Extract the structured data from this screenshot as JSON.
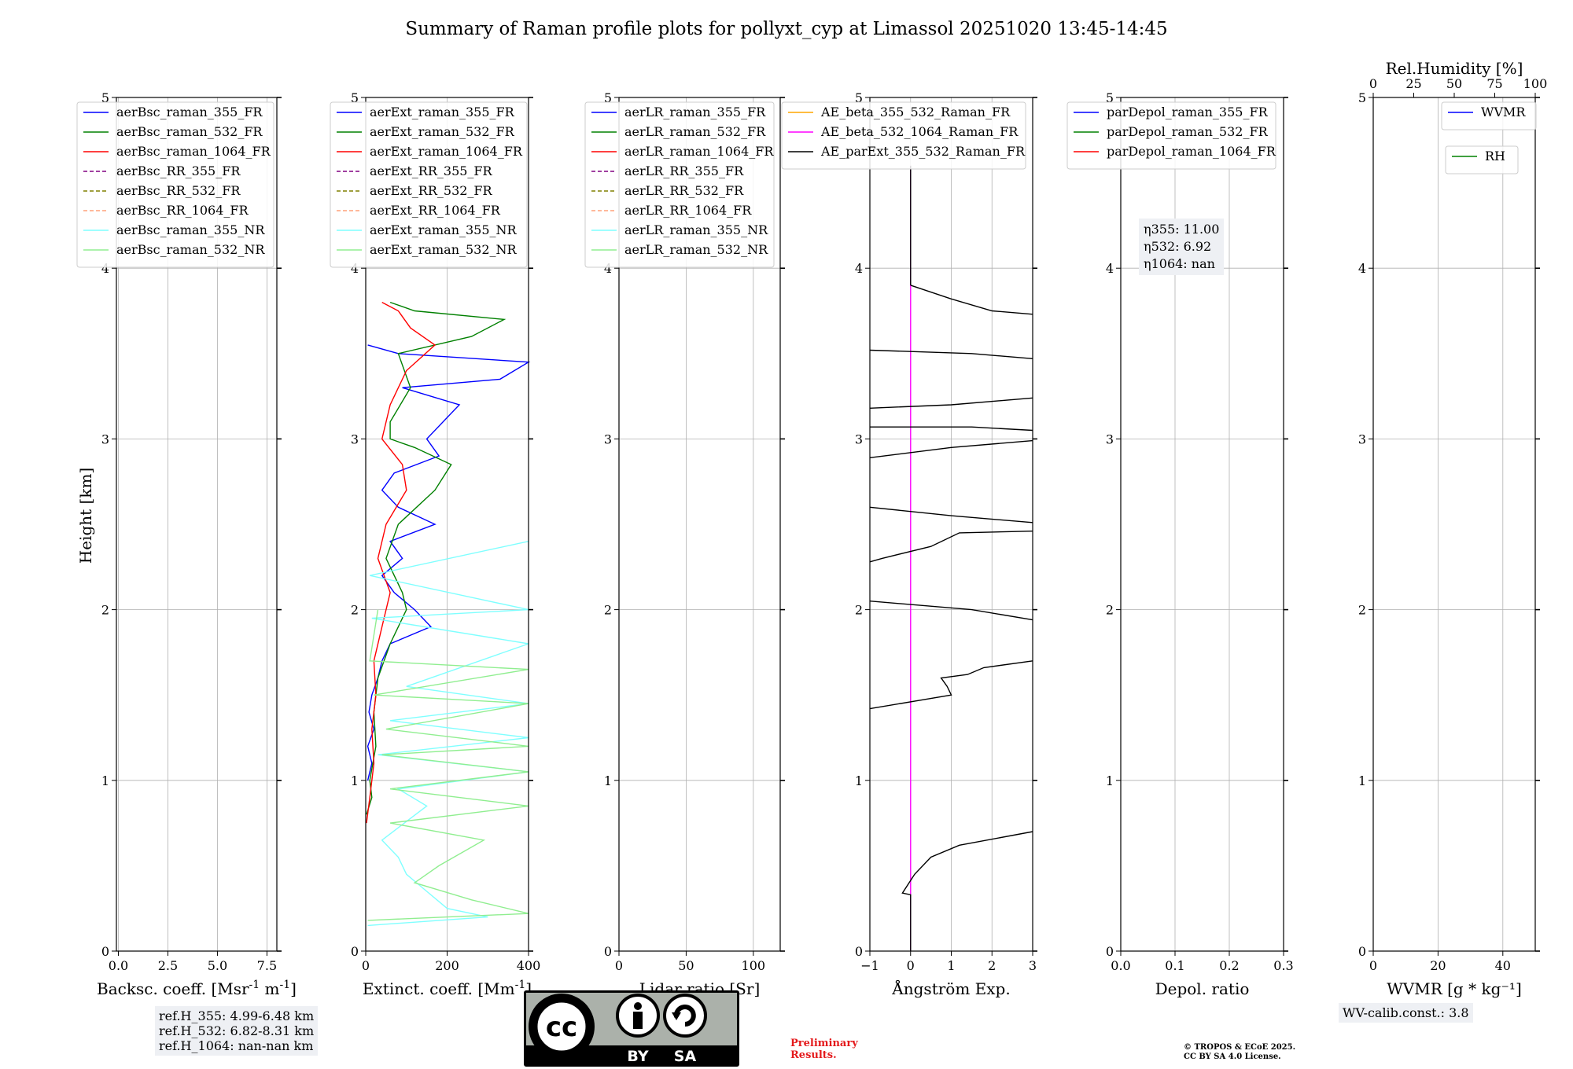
{
  "figure": {
    "title": "Summary of Raman profile plots for pollyxt_cyp at Limassol 20251020 13:45-14:45",
    "y_label": "Height [km]",
    "ref_box": [
      "ref.H_355: 4.99-6.48 km",
      "ref.H_532: 6.82-8.31 km",
      "ref.H_1064: nan-nan km"
    ],
    "wv_calib": "WV-calib.const.: 3.8",
    "preliminary": [
      "Preliminary",
      "Results."
    ],
    "copyright": [
      "© TROPOS & ECoE 2025.",
      "CC BY SA 4.0 License."
    ],
    "cc_badge": {
      "cc": "cc",
      "by": "BY",
      "sa": "SA"
    }
  },
  "colors": {
    "c355": "#0000ff",
    "c532": "#008000",
    "c1064": "#ff0000",
    "rr355": "#800080",
    "rr532": "#808000",
    "rr1064": "#ffa07a",
    "nr355": "#7fffff",
    "nr532": "#90ee90",
    "ae1": "#ffa500",
    "ae2": "#ff00ff",
    "ae3": "#000000"
  },
  "chart_data": [
    {
      "type": "line",
      "id": "bsc",
      "xlabel": "Backsc. coeff. [Msr$^{-1}$ m$^{-1}$]",
      "ylabel": "Height [km]",
      "xlim": [
        -0.1,
        8.0
      ],
      "ylim": [
        0,
        5
      ],
      "xticks": [
        0.0,
        2.5,
        5.0,
        7.5
      ],
      "xtick_labels": [
        "0.0",
        "2.5",
        "5.0",
        "7.5"
      ],
      "yticks": [
        0,
        1,
        2,
        3,
        4,
        5
      ],
      "ytick_labels": [
        "0",
        "1",
        "2",
        "3",
        "4",
        "5"
      ],
      "legend": [
        {
          "label": "aerBsc_raman_355_FR",
          "color": "#0000ff",
          "dash": false
        },
        {
          "label": "aerBsc_raman_532_FR",
          "color": "#008000",
          "dash": false
        },
        {
          "label": "aerBsc_raman_1064_FR",
          "color": "#ff0000",
          "dash": false
        },
        {
          "label": "aerBsc_RR_355_FR",
          "color": "#800080",
          "dash": true
        },
        {
          "label": "aerBsc_RR_532_FR",
          "color": "#808000",
          "dash": true
        },
        {
          "label": "aerBsc_RR_1064_FR",
          "color": "#ffa07a",
          "dash": true
        },
        {
          "label": "aerBsc_raman_355_NR",
          "color": "#7fffff",
          "dash": false
        },
        {
          "label": "aerBsc_raman_532_NR",
          "color": "#90ee90",
          "dash": false
        }
      ],
      "series": []
    },
    {
      "type": "line",
      "id": "ext",
      "xlabel": "Extinct. coeff. [Mm$^{-1}$]",
      "xlim": [
        0,
        400
      ],
      "ylim": [
        0,
        5
      ],
      "xticks": [
        0,
        200,
        400
      ],
      "xtick_labels": [
        "0",
        "200",
        "400"
      ],
      "yticks": [
        0,
        1,
        2,
        3,
        4,
        5
      ],
      "ytick_labels": [
        "0",
        "1",
        "2",
        "3",
        "4",
        "5"
      ],
      "legend": [
        {
          "label": "aerExt_raman_355_FR",
          "color": "#0000ff",
          "dash": false
        },
        {
          "label": "aerExt_raman_532_FR",
          "color": "#008000",
          "dash": false
        },
        {
          "label": "aerExt_raman_1064_FR",
          "color": "#ff0000",
          "dash": false
        },
        {
          "label": "aerExt_RR_355_FR",
          "color": "#800080",
          "dash": true
        },
        {
          "label": "aerExt_RR_532_FR",
          "color": "#808000",
          "dash": true
        },
        {
          "label": "aerExt_RR_1064_FR",
          "color": "#ffa07a",
          "dash": true
        },
        {
          "label": "aerExt_raman_355_NR",
          "color": "#7fffff",
          "dash": false
        },
        {
          "label": "aerExt_raman_532_NR",
          "color": "#90ee90",
          "dash": false
        }
      ],
      "series": [
        {
          "name": "aerExt_raman_355_FR",
          "color": "#0000ff",
          "points": [
            [
              5,
              1.0
            ],
            [
              15,
              1.1
            ],
            [
              5,
              1.2
            ],
            [
              20,
              1.3
            ],
            [
              8,
              1.4
            ],
            [
              15,
              1.5
            ],
            [
              30,
              1.6
            ],
            [
              40,
              1.7
            ],
            [
              60,
              1.8
            ],
            [
              160,
              1.9
            ],
            [
              120,
              2.0
            ],
            [
              70,
              2.1
            ],
            [
              40,
              2.2
            ],
            [
              90,
              2.3
            ],
            [
              60,
              2.4
            ],
            [
              170,
              2.5
            ],
            [
              80,
              2.6
            ],
            [
              40,
              2.7
            ],
            [
              70,
              2.8
            ],
            [
              180,
              2.9
            ],
            [
              150,
              3.0
            ],
            [
              230,
              3.2
            ],
            [
              90,
              3.3
            ],
            [
              330,
              3.35
            ],
            [
              400,
              3.45
            ],
            [
              80,
              3.5
            ],
            [
              5,
              3.55
            ]
          ]
        },
        {
          "name": "aerExt_raman_532_FR",
          "color": "#008000",
          "points": [
            [
              2,
              0.8
            ],
            [
              15,
              0.9
            ],
            [
              10,
              1.0
            ],
            [
              25,
              1.2
            ],
            [
              20,
              1.4
            ],
            [
              30,
              1.6
            ],
            [
              60,
              1.8
            ],
            [
              100,
              2.0
            ],
            [
              90,
              2.1
            ],
            [
              50,
              2.3
            ],
            [
              80,
              2.5
            ],
            [
              170,
              2.7
            ],
            [
              210,
              2.85
            ],
            [
              120,
              2.95
            ],
            [
              60,
              3.0
            ],
            [
              60,
              3.1
            ],
            [
              110,
              3.3
            ],
            [
              80,
              3.5
            ],
            [
              260,
              3.6
            ],
            [
              340,
              3.7
            ],
            [
              120,
              3.75
            ],
            [
              60,
              3.8
            ]
          ]
        },
        {
          "name": "aerExt_raman_1064_FR",
          "color": "#ff0000",
          "points": [
            [
              2,
              0.75
            ],
            [
              10,
              0.9
            ],
            [
              20,
              1.1
            ],
            [
              15,
              1.3
            ],
            [
              25,
              1.5
            ],
            [
              20,
              1.7
            ],
            [
              40,
              1.9
            ],
            [
              60,
              2.1
            ],
            [
              30,
              2.3
            ],
            [
              50,
              2.5
            ],
            [
              100,
              2.7
            ],
            [
              90,
              2.85
            ],
            [
              40,
              3.0
            ],
            [
              60,
              3.2
            ],
            [
              100,
              3.4
            ],
            [
              170,
              3.55
            ],
            [
              110,
              3.65
            ],
            [
              80,
              3.75
            ],
            [
              40,
              3.8
            ]
          ]
        },
        {
          "name": "aerExt_raman_355_NR",
          "color": "#7fffff",
          "points": [
            [
              5,
              0.15
            ],
            [
              300,
              0.2
            ],
            [
              200,
              0.25
            ],
            [
              150,
              0.35
            ],
            [
              100,
              0.45
            ],
            [
              80,
              0.55
            ],
            [
              40,
              0.65
            ],
            [
              150,
              0.85
            ],
            [
              80,
              0.95
            ],
            [
              400,
              1.05
            ],
            [
              30,
              1.15
            ],
            [
              400,
              1.25
            ],
            [
              60,
              1.35
            ],
            [
              400,
              1.45
            ],
            [
              100,
              1.55
            ],
            [
              400,
              1.8
            ],
            [
              15,
              1.95
            ],
            [
              400,
              2.0
            ],
            [
              10,
              2.2
            ],
            [
              400,
              2.4
            ]
          ]
        },
        {
          "name": "aerExt_raman_532_NR",
          "color": "#90ee90",
          "points": [
            [
              5,
              0.18
            ],
            [
              400,
              0.22
            ],
            [
              260,
              0.3
            ],
            [
              120,
              0.4
            ],
            [
              180,
              0.5
            ],
            [
              290,
              0.65
            ],
            [
              60,
              0.75
            ],
            [
              400,
              0.85
            ],
            [
              60,
              0.95
            ],
            [
              400,
              1.05
            ],
            [
              40,
              1.15
            ],
            [
              400,
              1.2
            ],
            [
              50,
              1.3
            ],
            [
              400,
              1.45
            ],
            [
              20,
              1.5
            ],
            [
              400,
              1.65
            ],
            [
              10,
              1.7
            ],
            [
              30,
              2.0
            ]
          ]
        }
      ]
    },
    {
      "type": "line",
      "id": "lr",
      "xlabel": "Lidar ratio [Sr]",
      "xlim": [
        0,
        120
      ],
      "ylim": [
        0,
        5
      ],
      "xticks": [
        0,
        50,
        100
      ],
      "xtick_labels": [
        "0",
        "50",
        "100"
      ],
      "yticks": [
        0,
        1,
        2,
        3,
        4,
        5
      ],
      "ytick_labels": [
        "0",
        "1",
        "2",
        "3",
        "4",
        "5"
      ],
      "legend": [
        {
          "label": "aerLR_raman_355_FR",
          "color": "#0000ff",
          "dash": false
        },
        {
          "label": "aerLR_raman_532_FR",
          "color": "#008000",
          "dash": false
        },
        {
          "label": "aerLR_raman_1064_FR",
          "color": "#ff0000",
          "dash": false
        },
        {
          "label": "aerLR_RR_355_FR",
          "color": "#800080",
          "dash": true
        },
        {
          "label": "aerLR_RR_532_FR",
          "color": "#808000",
          "dash": true
        },
        {
          "label": "aerLR_RR_1064_FR",
          "color": "#ffa07a",
          "dash": true
        },
        {
          "label": "aerLR_raman_355_NR",
          "color": "#7fffff",
          "dash": false
        },
        {
          "label": "aerLR_raman_532_NR",
          "color": "#90ee90",
          "dash": false
        }
      ],
      "series": []
    },
    {
      "type": "line",
      "id": "ae",
      "xlabel": "Ångström Exp.",
      "xlim": [
        -1,
        3
      ],
      "ylim": [
        0,
        5
      ],
      "xticks": [
        -1,
        0,
        1,
        2,
        3
      ],
      "xtick_labels": [
        "−1",
        "0",
        "1",
        "2",
        "3"
      ],
      "yticks": [
        0,
        1,
        2,
        3,
        4,
        5
      ],
      "ytick_labels": [
        "0",
        "1",
        "2",
        "3",
        "4",
        "5"
      ],
      "legend": [
        {
          "label": "AE_beta_355_532_Raman_FR",
          "color": "#ffa500",
          "dash": false
        },
        {
          "label": "AE_beta_532_1064_Raman_FR",
          "color": "#ff00ff",
          "dash": false
        },
        {
          "label": "AE_parExt_355_532_Raman_FR",
          "color": "#000000",
          "dash": false
        }
      ],
      "series": [
        {
          "name": "AE_beta_532_1064_Raman_FR",
          "color": "#ff00ff",
          "points": [
            [
              0,
              0.0
            ],
            [
              0,
              4.6
            ]
          ]
        },
        {
          "name": "AE_parExt_355_532_Raman_FR",
          "color": "#000000",
          "points": [
            [
              0,
              0.0
            ],
            [
              0,
              0.33
            ],
            [
              -0.2,
              0.34
            ],
            [
              0.1,
              0.45
            ],
            [
              0.5,
              0.55
            ],
            [
              1.2,
              0.62
            ],
            [
              3,
              0.7
            ]
          ],
          "extra": [
            [
              [
                -1,
                1.42
              ],
              [
                1,
                1.5
              ],
              [
                0.9,
                1.55
              ],
              [
                0.75,
                1.6
              ],
              [
                1.4,
                1.62
              ],
              [
                1.8,
                1.66
              ],
              [
                3,
                1.7
              ]
            ],
            [
              [
                -1,
                2.05
              ],
              [
                1.5,
                2.0
              ],
              [
                3,
                1.94
              ]
            ],
            [
              [
                -1,
                2.28
              ],
              [
                -0.7,
                2.3
              ],
              [
                0.5,
                2.37
              ],
              [
                1.2,
                2.45
              ],
              [
                3,
                2.46
              ]
            ],
            [
              [
                -1,
                2.6
              ],
              [
                1,
                2.55
              ],
              [
                3,
                2.51
              ]
            ],
            [
              [
                -1,
                2.89
              ],
              [
                1,
                2.95
              ],
              [
                3,
                2.99
              ]
            ],
            [
              [
                -1,
                3.07
              ],
              [
                1.5,
                3.07
              ],
              [
                3,
                3.05
              ]
            ],
            [
              [
                -1,
                3.18
              ],
              [
                1,
                3.2
              ],
              [
                3,
                3.24
              ]
            ],
            [
              [
                -1,
                3.52
              ],
              [
                1.5,
                3.5
              ],
              [
                3,
                3.47
              ]
            ],
            [
              [
                0,
                3.9
              ],
              [
                1,
                3.82
              ],
              [
                2,
                3.75
              ],
              [
                3,
                3.73
              ]
            ],
            [
              [
                0,
                3.9
              ],
              [
                0,
                4.6
              ]
            ]
          ]
        }
      ]
    },
    {
      "type": "line",
      "id": "dep",
      "xlabel": "Depol. ratio",
      "xlim": [
        0.0,
        0.3
      ],
      "ylim": [
        0,
        5
      ],
      "xticks": [
        0.0,
        0.1,
        0.2,
        0.3
      ],
      "xtick_labels": [
        "0.0",
        "0.1",
        "0.2",
        "0.3"
      ],
      "yticks": [
        0,
        1,
        2,
        3,
        4,
        5
      ],
      "ytick_labels": [
        "0",
        "1",
        "2",
        "3",
        "4",
        "5"
      ],
      "legend": [
        {
          "label": "parDepol_raman_355_FR",
          "color": "#0000ff",
          "dash": false
        },
        {
          "label": "parDepol_raman_532_FR",
          "color": "#008000",
          "dash": false
        },
        {
          "label": "parDepol_raman_1064_FR",
          "color": "#ff0000",
          "dash": false
        }
      ],
      "eta": [
        "η355: 11.00",
        "η532: 6.92",
        "η1064: nan"
      ],
      "series": []
    },
    {
      "type": "line",
      "id": "wv",
      "xlabel": "WVMR [g * kg⁻¹]",
      "xlim": [
        0,
        50
      ],
      "ylim": [
        0,
        5
      ],
      "xticks": [
        0,
        20,
        40
      ],
      "xtick_labels": [
        "0",
        "20",
        "40"
      ],
      "top_xlabel": "Rel.Humidity [%]",
      "top_xlim": [
        0,
        100
      ],
      "top_xticks": [
        0,
        25,
        50,
        75,
        100
      ],
      "top_xtick_labels": [
        "0",
        "25",
        "50",
        "75",
        "100"
      ],
      "yticks": [
        0,
        1,
        2,
        3,
        4,
        5
      ],
      "ytick_labels": [
        "0",
        "1",
        "2",
        "3",
        "4",
        "5"
      ],
      "legend": [
        {
          "label": "WVMR",
          "color": "#0000ff",
          "dash": false
        }
      ],
      "legend2": [
        {
          "label": "RH",
          "color": "#008000",
          "dash": false
        }
      ],
      "series": []
    }
  ]
}
